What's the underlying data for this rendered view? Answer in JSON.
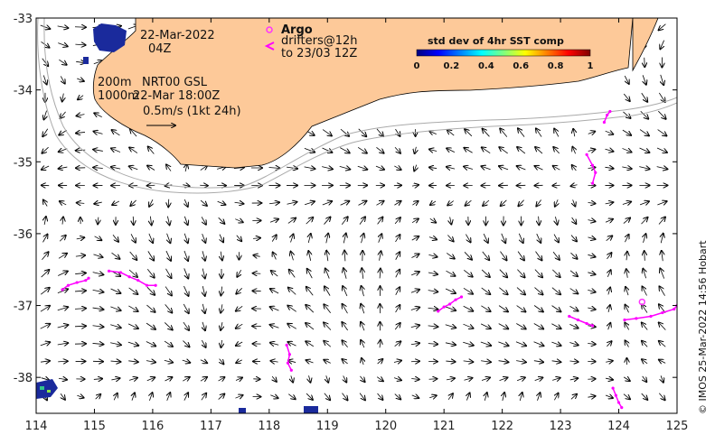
{
  "map": {
    "date": "22-Mar-2022",
    "time": "04Z",
    "depth_line_1": "200m",
    "depth_line_2": "1000m",
    "product": "NRT00 GSL",
    "product_time": "22-Mar 18:00Z",
    "scale_label": "0.5m/s (1kt 24h)",
    "credit": "© IMOS 25-Mar-2022 14:56 Hobart",
    "colors": {
      "land": "#fdc999",
      "argo": "#ff33ff",
      "drifter": "#ff00ff",
      "isobath": "#aaaaaa",
      "sst_patch": "#1a2a9c"
    }
  },
  "legend": {
    "argo_label": "Argo",
    "drifters_label": "drifters@12h",
    "drifters_sub": "to 23/03 12Z"
  },
  "colorbar": {
    "title": "std dev of 4hr SST comp",
    "ticks": [
      "0",
      "0.2",
      "0.4",
      "0.6",
      "0.8",
      "1"
    ],
    "stops": [
      "#00007f",
      "#0000ff",
      "#007fff",
      "#00ffff",
      "#7fff7f",
      "#ffff00",
      "#ff7f00",
      "#ff0000",
      "#7f0000"
    ]
  },
  "axes": {
    "x_ticks": [
      "114",
      "115",
      "116",
      "117",
      "118",
      "119",
      "120",
      "121",
      "122",
      "123",
      "124",
      "125"
    ],
    "y_ticks": [
      "-33",
      "-34",
      "-35",
      "-36",
      "-37",
      "-38"
    ],
    "xlim": [
      114,
      125
    ],
    "ylim": [
      -38.5,
      -33
    ]
  },
  "argo_float": {
    "lon": 124.4,
    "lat": -36.95
  },
  "drifters": [
    [
      [
        114.45,
        -36.78
      ],
      [
        114.55,
        -36.72
      ],
      [
        114.7,
        -36.68
      ],
      [
        114.85,
        -36.65
      ],
      [
        114.9,
        -36.62
      ]
    ],
    [
      [
        115.25,
        -36.52
      ],
      [
        115.45,
        -36.54
      ],
      [
        115.6,
        -36.6
      ],
      [
        115.75,
        -36.65
      ],
      [
        115.9,
        -36.72
      ],
      [
        116.05,
        -36.72
      ]
    ],
    [
      [
        118.3,
        -37.55
      ],
      [
        118.35,
        -37.68
      ],
      [
        118.32,
        -37.8
      ],
      [
        118.38,
        -37.9
      ]
    ],
    [
      [
        120.9,
        -37.08
      ],
      [
        121.0,
        -37.02
      ],
      [
        121.1,
        -36.98
      ],
      [
        121.2,
        -36.92
      ],
      [
        121.3,
        -36.88
      ]
    ],
    [
      [
        123.45,
        -34.9
      ],
      [
        123.55,
        -35.05
      ],
      [
        123.6,
        -35.15
      ],
      [
        123.55,
        -35.3
      ]
    ],
    [
      [
        123.75,
        -34.45
      ],
      [
        123.8,
        -34.35
      ],
      [
        123.85,
        -34.3
      ]
    ],
    [
      [
        123.9,
        -38.15
      ],
      [
        123.95,
        -38.25
      ],
      [
        124.0,
        -38.35
      ],
      [
        124.05,
        -38.42
      ]
    ],
    [
      [
        123.15,
        -37.15
      ],
      [
        123.3,
        -37.2
      ],
      [
        123.45,
        -37.25
      ],
      [
        123.55,
        -37.28
      ]
    ],
    [
      [
        124.1,
        -37.2
      ],
      [
        124.3,
        -37.18
      ],
      [
        124.55,
        -37.15
      ],
      [
        124.75,
        -37.1
      ],
      [
        124.95,
        -37.05
      ],
      [
        125.0,
        -37.0
      ]
    ]
  ]
}
